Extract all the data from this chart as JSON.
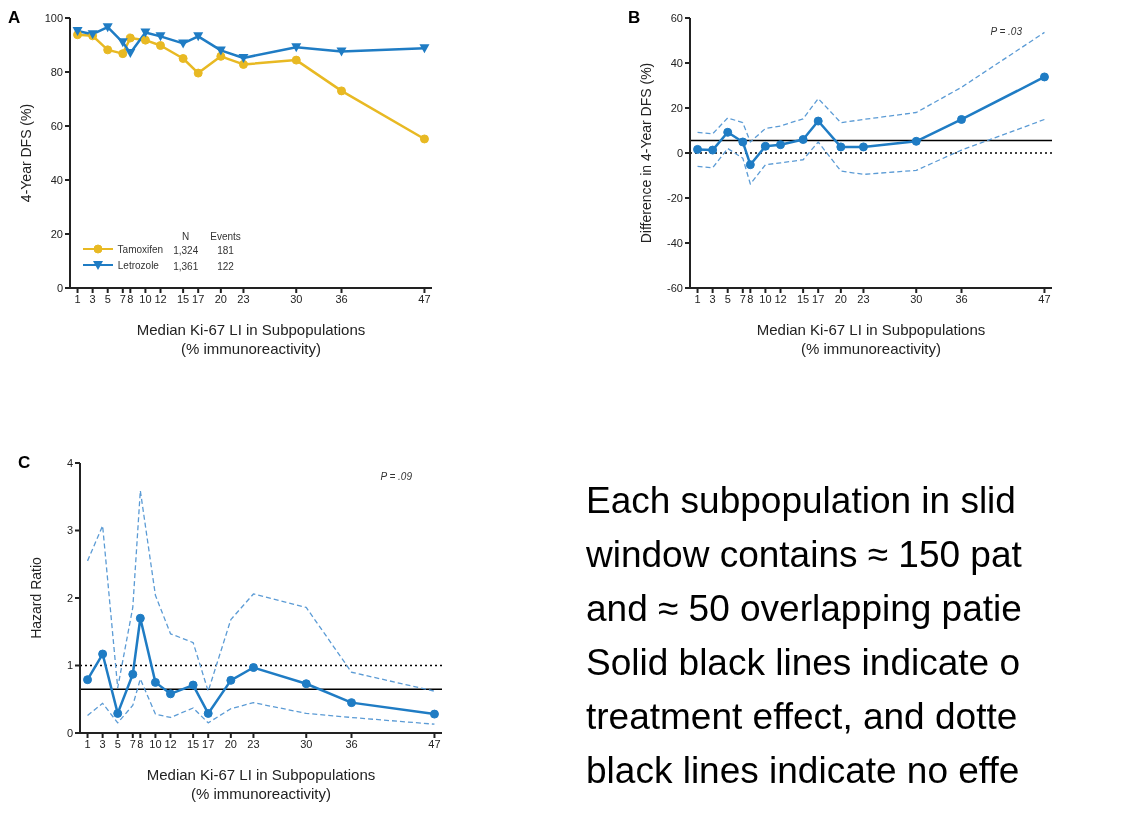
{
  "chart_data": [
    {
      "type": "line",
      "title": "A",
      "xlabel": "Median Ki-67 LI in Subpopulations\n(% immunoreactivity)",
      "ylabel": "4-Year DFS (%)",
      "x": [
        1,
        3,
        5,
        7,
        8,
        10,
        12,
        15,
        17,
        20,
        23,
        30,
        36,
        47
      ],
      "series": [
        {
          "name": "Tamoxifen",
          "color": "#e8b923",
          "marker": "circle",
          "values": [
            93.8,
            93.4,
            88.2,
            86.8,
            92.6,
            91.8,
            89.8,
            85,
            79.6,
            85.8,
            82.8,
            84.4,
            73,
            55.2
          ]
        },
        {
          "name": "Letrozole",
          "color": "#1f7cc4",
          "marker": "triangle",
          "values": [
            95.2,
            94,
            96.6,
            91,
            87,
            94.6,
            93.2,
            90.6,
            93.2,
            88,
            85.2,
            89.2,
            87.6,
            88.8
          ]
        }
      ],
      "xlim": [
        0,
        48
      ],
      "xticks": [
        1,
        3,
        5,
        7,
        8,
        10,
        12,
        15,
        17,
        20,
        23,
        30,
        36,
        47
      ],
      "ylim": [
        0,
        100
      ],
      "yticks": [
        0,
        20,
        40,
        60,
        80,
        100
      ],
      "legend": "bottom left",
      "annotations": [
        "N",
        "Events",
        "1,324",
        "181",
        "1,361",
        "122"
      ]
    },
    {
      "type": "line",
      "title": "B",
      "xlabel": "Median Ki-67 LI in Subpopulations\n(% immunoreactivity)",
      "ylabel": "Difference in 4-Year DFS (%)",
      "x": [
        1,
        3,
        5,
        7,
        8,
        10,
        12,
        15,
        17,
        20,
        23,
        30,
        36,
        47
      ],
      "series": [
        {
          "color": "#1f7cc4",
          "marker": "circle",
          "line_style": "solid",
          "values": [
            1.6,
            1.3,
            9.2,
            4.9,
            -5.2,
            3,
            3.7,
            6,
            14.2,
            2.7,
            2.7,
            5.2,
            14.9,
            33.8
          ]
        },
        {
          "color": "#5b9bd5",
          "marker": "none",
          "line_style": "dashed",
          "values": [
            9.2,
            8.5,
            15.6,
            13.5,
            4.9,
            10.9,
            12,
            15.2,
            24.2,
            13.5,
            14.9,
            18,
            29.2,
            53.6
          ]
        },
        {
          "color": "#5b9bd5",
          "marker": "none",
          "line_style": "dashed",
          "values": [
            -5.9,
            -6.6,
            2,
            -2.3,
            -13.8,
            -5.2,
            -4.4,
            -3,
            4.9,
            -8,
            -9.5,
            -7.7,
            1.3,
            14.9
          ]
        }
      ],
      "xlim": [
        0,
        48
      ],
      "xticks": [
        1,
        3,
        5,
        7,
        8,
        10,
        12,
        15,
        17,
        20,
        23,
        30,
        36,
        47
      ],
      "ylim": [
        -60,
        60
      ],
      "yticks": [
        -60,
        -40,
        -20,
        0,
        20,
        40,
        60
      ],
      "ref_lines": [
        {
          "axis": "y",
          "value": 5.6,
          "color": "#000000",
          "line_style": "solid"
        },
        {
          "axis": "y",
          "value": 0,
          "color": "#000000",
          "line_style": "dotted"
        }
      ],
      "annotations": [
        "P = .03"
      ]
    },
    {
      "type": "line",
      "title": "C",
      "xlabel": "Median Ki-67 LI in Subpopulations\n(% immunoreactivity)",
      "ylabel": "Hazard Ratio",
      "x": [
        1,
        3,
        5,
        7,
        8,
        10,
        12,
        15,
        17,
        20,
        23,
        30,
        36,
        47
      ],
      "series": [
        {
          "color": "#1f7cc4",
          "marker": "circle",
          "line_style": "solid",
          "values": [
            0.79,
            1.17,
            0.29,
            0.87,
            1.7,
            0.75,
            0.58,
            0.71,
            0.29,
            0.78,
            0.97,
            0.73,
            0.45,
            0.28
          ]
        },
        {
          "color": "#5b9bd5",
          "marker": "none",
          "line_style": "dashed",
          "values": [
            2.55,
            3.07,
            0.67,
            1.86,
            3.59,
            2.04,
            1.47,
            1.34,
            0.62,
            1.68,
            2.06,
            1.86,
            0.9,
            0.62
          ]
        },
        {
          "color": "#5b9bd5",
          "marker": "none",
          "line_style": "dashed",
          "values": [
            0.26,
            0.44,
            0.15,
            0.41,
            0.8,
            0.28,
            0.23,
            0.37,
            0.15,
            0.36,
            0.45,
            0.29,
            0.23,
            0.13
          ]
        }
      ],
      "xlim": [
        0,
        48
      ],
      "xticks": [
        1,
        3,
        5,
        7,
        8,
        10,
        12,
        15,
        17,
        20,
        23,
        30,
        36,
        47
      ],
      "ylim": [
        0,
        4
      ],
      "yticks": [
        0,
        1,
        2,
        3,
        4
      ],
      "ref_lines": [
        {
          "axis": "y",
          "value": 0.65,
          "color": "#000000",
          "line_style": "solid"
        },
        {
          "axis": "y",
          "value": 1,
          "color": "#000000",
          "line_style": "dotted"
        }
      ],
      "annotations": [
        "P = .09"
      ]
    },
    {
      "type": "other",
      "annotations": [
        "Each subpopulation in slid",
        "window contains ≈ 150 pat",
        "and ≈ 50 overlapping patie",
        "Solid black lines indicate o",
        "treatment effect, and dotte",
        "black lines indicate no effe"
      ]
    }
  ]
}
